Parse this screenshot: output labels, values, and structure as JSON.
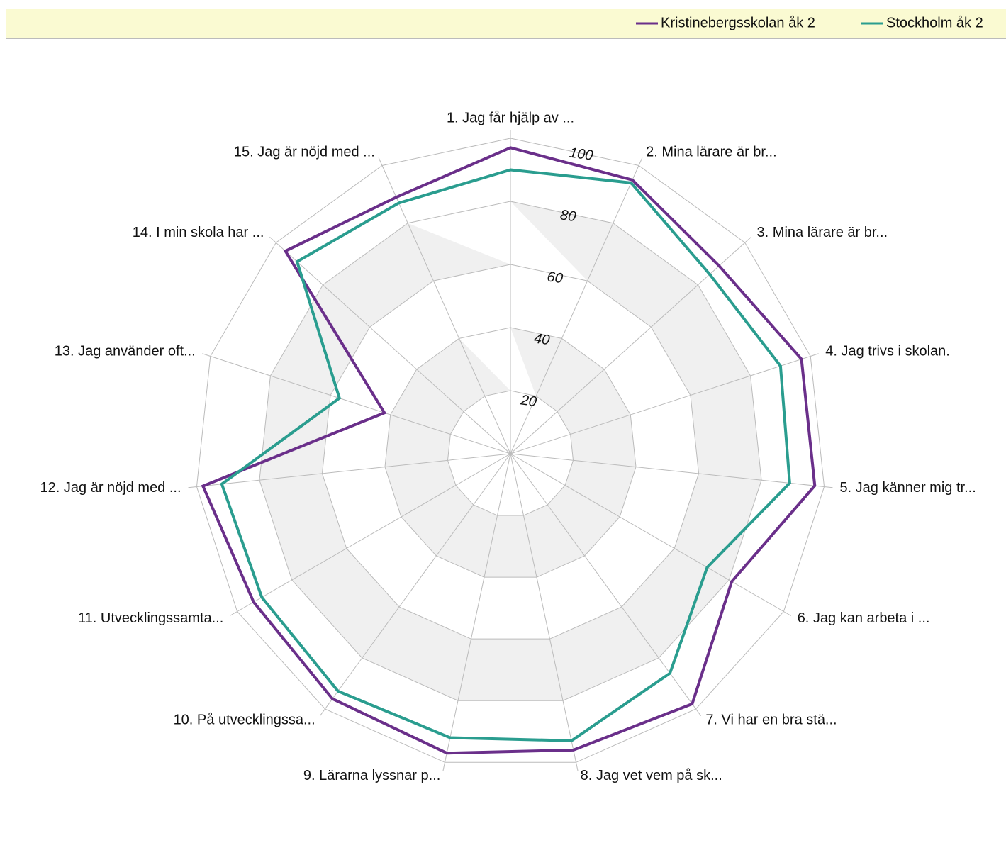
{
  "chart_data": {
    "type": "radar",
    "categories": [
      "1. Jag får hjälp av ...",
      "2. Mina lärare är br...",
      "3. Mina lärare är br...",
      "4. Jag trivs i skolan.",
      "5. Jag känner mig tr...",
      "6. Jag kan arbeta i ...",
      "7. Vi har en bra stä...",
      "8. Jag vet vem på sk...",
      "9. Lärarna lyssnar p...",
      "10. På utvecklingssa...",
      "11. Utvecklingssamta...",
      "12. Jag är nöjd med ...",
      "13. Jag använder oft...",
      "14. I min skola har ...",
      "15. Jag är nöjd med ..."
    ],
    "series": [
      {
        "name": "Kristinebergsskolan åk 2",
        "color": "#6a2f8a",
        "values": [
          97,
          95,
          89,
          97,
          97,
          81,
          98,
          96,
          97,
          96,
          94,
          98,
          42,
          96,
          89
        ]
      },
      {
        "name": "Stockholm åk 2",
        "color": "#2a9d8f",
        "values": [
          90,
          94,
          85,
          90,
          89,
          72,
          86,
          93,
          92,
          93,
          91,
          92,
          57,
          91,
          87
        ]
      }
    ],
    "ylim": [
      0,
      100
    ],
    "yticks": [
      20,
      40,
      60,
      80,
      100
    ],
    "grid": true,
    "legend": "top-right"
  }
}
